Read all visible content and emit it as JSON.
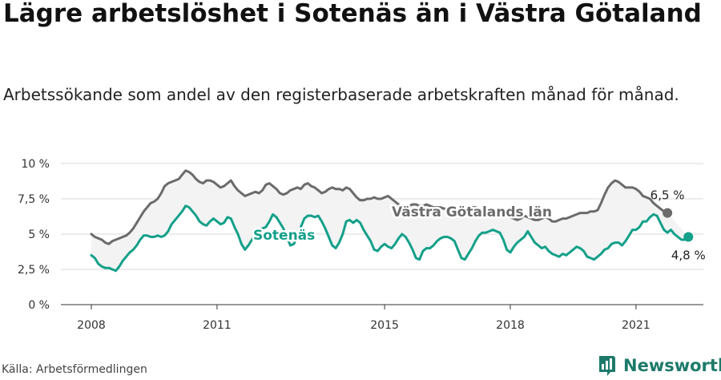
{
  "header": {
    "title": "Lägre arbetslöshet i Sotenäs än i Västra Götaland",
    "subtitle": "Arbetssökande som andel av den registerbaserade arbetskraften månad för månad."
  },
  "footer": {
    "source": "Källa: Arbetsförmedlingen",
    "brand": "Newsworthy"
  },
  "colors": {
    "sotenas": "#14a08a",
    "vastra": "#6b6b6b",
    "band": "#f3f3f3",
    "grid": "#d9d9d9",
    "brand": "#1d7a6b"
  },
  "chart_data": {
    "type": "line",
    "x_start": "2008-01",
    "x_step": "month",
    "x_ticks": [
      2008,
      2011,
      2015,
      2018,
      2021
    ],
    "x_tick_labels": [
      "2008",
      "2011",
      "2015",
      "2018",
      "2021"
    ],
    "y_ticks": [
      0,
      2.5,
      5,
      7.5,
      10
    ],
    "y_tick_labels": [
      "0 %",
      "2,5 %",
      "5 %",
      "7,5 %",
      "10 %"
    ],
    "ylim": [
      0,
      10
    ],
    "grid": true,
    "series": [
      {
        "name": "Västra Götalands län",
        "color": "#6b6b6b",
        "end_label": "6,5 %",
        "values": [
          5.0,
          4.8,
          4.7,
          4.6,
          4.4,
          4.3,
          4.5,
          4.6,
          4.7,
          4.8,
          4.9,
          5.1,
          5.4,
          5.8,
          6.2,
          6.6,
          6.9,
          7.2,
          7.3,
          7.5,
          7.9,
          8.4,
          8.6,
          8.7,
          8.8,
          8.9,
          9.2,
          9.5,
          9.4,
          9.2,
          8.9,
          8.7,
          8.6,
          8.8,
          8.8,
          8.7,
          8.5,
          8.3,
          8.4,
          8.6,
          8.8,
          8.4,
          8.1,
          7.9,
          7.7,
          7.8,
          7.9,
          8.0,
          7.9,
          8.1,
          8.5,
          8.6,
          8.4,
          8.2,
          7.9,
          7.8,
          7.9,
          8.1,
          8.2,
          8.3,
          8.2,
          8.5,
          8.6,
          8.4,
          8.3,
          8.1,
          7.9,
          8.0,
          8.2,
          8.3,
          8.2,
          8.2,
          8.1,
          8.3,
          8.2,
          7.9,
          7.6,
          7.4,
          7.4,
          7.5,
          7.5,
          7.6,
          7.5,
          7.5,
          7.6,
          7.7,
          7.5,
          7.3,
          7.1,
          6.9,
          6.9,
          7.0,
          7.1,
          7.1,
          7.0,
          7.0,
          7.1,
          7.0,
          6.9,
          6.9,
          6.9,
          6.8,
          6.8,
          6.9,
          6.8,
          6.6,
          6.5,
          6.7,
          6.8,
          6.9,
          6.9,
          6.8,
          6.7,
          6.6,
          6.6,
          6.5,
          6.4,
          6.3,
          6.3,
          6.4,
          6.2,
          6.1,
          6.0,
          6.1,
          6.3,
          6.2,
          6.1,
          6.0,
          6.0,
          6.1,
          6.2,
          6.1,
          5.9,
          5.9,
          6.0,
          6.1,
          6.1,
          6.2,
          6.3,
          6.4,
          6.5,
          6.5,
          6.5,
          6.6,
          6.6,
          6.7,
          7.2,
          7.8,
          8.3,
          8.6,
          8.8,
          8.7,
          8.5,
          8.3,
          8.3,
          8.3,
          8.2,
          8.0,
          7.7,
          7.6,
          7.5,
          7.2,
          7.0,
          6.8,
          6.6,
          6.5
        ]
      },
      {
        "name": "Sotenäs",
        "color": "#14a08a",
        "end_label": "4,8 %",
        "values": [
          3.5,
          3.3,
          2.9,
          2.7,
          2.6,
          2.6,
          2.5,
          2.4,
          2.7,
          3.1,
          3.4,
          3.7,
          3.9,
          4.2,
          4.6,
          4.9,
          4.9,
          4.8,
          4.8,
          4.9,
          4.8,
          4.9,
          5.2,
          5.7,
          6.0,
          6.3,
          6.6,
          7.0,
          6.9,
          6.6,
          6.3,
          5.9,
          5.7,
          5.6,
          5.9,
          6.1,
          5.9,
          5.7,
          5.8,
          6.2,
          6.1,
          5.5,
          5.0,
          4.3,
          3.9,
          4.2,
          4.6,
          5.0,
          5.3,
          5.4,
          5.5,
          5.9,
          6.4,
          6.2,
          5.8,
          5.4,
          4.8,
          4.2,
          4.3,
          4.8,
          5.5,
          6.1,
          6.3,
          6.3,
          6.2,
          6.3,
          5.9,
          5.4,
          4.8,
          4.2,
          4.0,
          4.4,
          5.0,
          5.9,
          6.0,
          5.8,
          6.0,
          5.8,
          5.3,
          4.9,
          4.5,
          3.9,
          3.8,
          4.1,
          4.3,
          4.1,
          4.0,
          4.3,
          4.7,
          5.0,
          4.8,
          4.4,
          3.9,
          3.3,
          3.2,
          3.8,
          4.0,
          4.0,
          4.2,
          4.5,
          4.7,
          4.8,
          4.8,
          4.7,
          4.5,
          3.9,
          3.3,
          3.2,
          3.6,
          4.0,
          4.5,
          4.9,
          5.1,
          5.1,
          5.2,
          5.3,
          5.2,
          5.1,
          4.6,
          3.9,
          3.7,
          4.1,
          4.4,
          4.6,
          4.8,
          5.2,
          4.8,
          4.4,
          4.2,
          4.0,
          4.1,
          3.8,
          3.6,
          3.5,
          3.4,
          3.6,
          3.5,
          3.7,
          3.9,
          4.1,
          4.0,
          3.8,
          3.4,
          3.3,
          3.2,
          3.4,
          3.6,
          3.9,
          4.0,
          4.3,
          4.4,
          4.4,
          4.2,
          4.5,
          4.9,
          5.3,
          5.3,
          5.5,
          5.9,
          5.9,
          6.2,
          6.4,
          6.3,
          5.8,
          5.3,
          5.1,
          5.3,
          5.0,
          4.8,
          4.6,
          4.6,
          4.8
        ]
      }
    ],
    "series_labels": [
      "Västra Götalands län",
      "Sotenäs"
    ]
  }
}
